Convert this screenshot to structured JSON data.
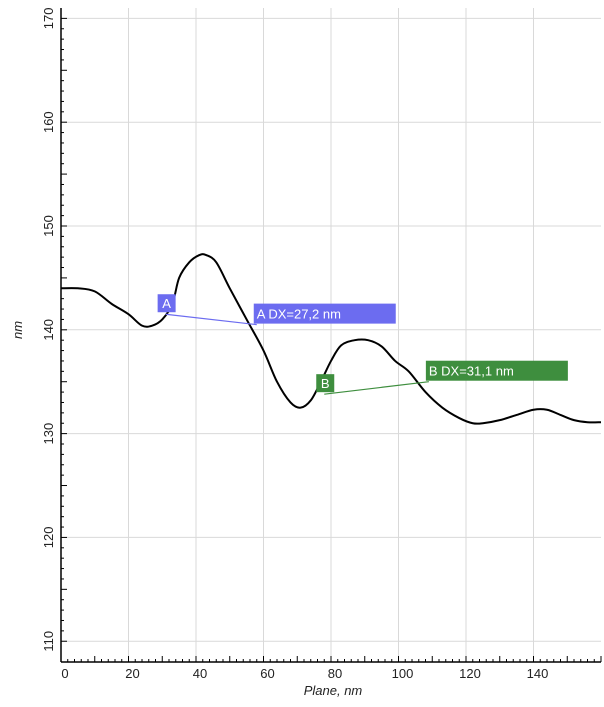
{
  "chart_data": {
    "type": "line",
    "title": "",
    "xlabel": "Plane, nm",
    "ylabel": "nm",
    "xlim": [
      0,
      160
    ],
    "ylim": [
      108,
      171
    ],
    "x_ticks": [
      0,
      20,
      40,
      60,
      80,
      100,
      120,
      140
    ],
    "y_ticks": [
      110,
      120,
      130,
      140,
      150,
      160,
      170
    ],
    "grid": true,
    "series": [
      {
        "color": "#000000",
        "x": [
          0,
          5,
          10,
          15,
          20,
          24,
          27,
          30,
          33,
          35,
          38,
          41,
          43,
          46,
          50,
          55,
          60,
          64,
          68,
          71,
          74,
          77,
          80,
          83,
          87,
          91,
          95,
          99,
          103,
          108,
          113,
          118,
          122,
          125,
          130,
          135,
          140,
          144,
          148,
          152,
          156,
          160
        ],
        "y": [
          144,
          144,
          143.7,
          142.5,
          141.5,
          140.4,
          140.4,
          141,
          142.5,
          145,
          146.5,
          147.2,
          147.2,
          146.5,
          144,
          141,
          138,
          135,
          133,
          132.5,
          133.2,
          135,
          137,
          138.5,
          139,
          139,
          138.4,
          137,
          136,
          134,
          132.5,
          131.5,
          131,
          131,
          131.3,
          131.8,
          132.3,
          132.3,
          131.8,
          131.3,
          131.1,
          131.1
        ]
      }
    ],
    "markers": [
      {
        "id": "A",
        "color": "#6c6cf0",
        "label": "A",
        "measure_label": "A DX=27,2 nm",
        "point1": {
          "x": 31,
          "y": 141.5
        },
        "point2": {
          "x": 58,
          "y": 140.5
        }
      },
      {
        "id": "B",
        "color": "#3e8e3e",
        "label": "B",
        "measure_label": "B DX=31,1 nm",
        "point1": {
          "x": 78,
          "y": 133.8
        },
        "point2": {
          "x": 109,
          "y": 135
        }
      }
    ]
  }
}
